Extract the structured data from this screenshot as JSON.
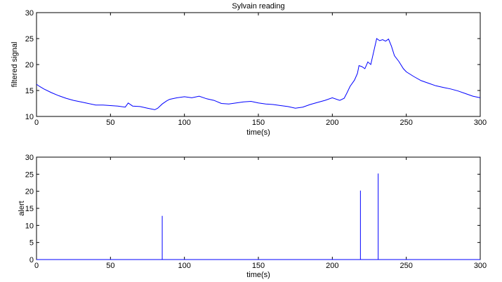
{
  "chart_data": [
    {
      "type": "line",
      "title": "Sylvain reading",
      "xlabel": "time(s)",
      "ylabel": "filtered signal",
      "xlim": [
        0,
        300
      ],
      "ylim": [
        10,
        30
      ],
      "xticks": [
        0,
        50,
        100,
        150,
        200,
        250,
        300
      ],
      "yticks": [
        10,
        15,
        20,
        25,
        30
      ],
      "xtick_labels": [
        "0",
        "50",
        "100",
        "150",
        "200",
        "250",
        "300"
      ],
      "ytick_labels": [
        "10",
        "15",
        "20",
        "25",
        "30"
      ],
      "grid": false,
      "color": "#0000ff",
      "series": [
        {
          "x": [
            0,
            2,
            5,
            10,
            15,
            20,
            25,
            30,
            35,
            40,
            45,
            50,
            55,
            60,
            62,
            65,
            70,
            75,
            80,
            82,
            85,
            88,
            90,
            95,
            100,
            105,
            110,
            115,
            120,
            125,
            130,
            135,
            140,
            145,
            150,
            155,
            160,
            165,
            170,
            175,
            180,
            185,
            190,
            195,
            200,
            205,
            208,
            210,
            212,
            215,
            217,
            218,
            220,
            222,
            224,
            226,
            228,
            230,
            232,
            234,
            236,
            238,
            240,
            242,
            245,
            248,
            250,
            255,
            260,
            265,
            270,
            275,
            280,
            285,
            290,
            295,
            300
          ],
          "y": [
            16.2,
            15.8,
            15.3,
            14.6,
            14.0,
            13.5,
            13.1,
            12.8,
            12.5,
            12.2,
            12.2,
            12.1,
            12.0,
            11.8,
            12.6,
            12.0,
            11.9,
            11.6,
            11.3,
            11.6,
            12.4,
            13.0,
            13.3,
            13.6,
            13.8,
            13.6,
            13.9,
            13.4,
            13.1,
            12.5,
            12.4,
            12.6,
            12.8,
            12.9,
            12.6,
            12.4,
            12.3,
            12.1,
            11.9,
            11.6,
            11.8,
            12.3,
            12.7,
            13.1,
            13.6,
            13.1,
            13.5,
            14.6,
            15.8,
            17.0,
            18.3,
            19.8,
            19.6,
            19.2,
            20.5,
            20.0,
            22.5,
            25.0,
            24.6,
            24.8,
            24.5,
            24.9,
            23.5,
            21.7,
            20.6,
            19.2,
            18.6,
            17.7,
            16.9,
            16.4,
            15.9,
            15.6,
            15.3,
            14.9,
            14.4,
            13.9,
            13.6
          ]
        }
      ]
    },
    {
      "type": "line",
      "title": "",
      "xlabel": "time(s)",
      "ylabel": "alert",
      "xlim": [
        0,
        300
      ],
      "ylim": [
        0,
        30
      ],
      "xticks": [
        0,
        50,
        100,
        150,
        200,
        250,
        300
      ],
      "yticks": [
        0,
        5,
        10,
        15,
        20,
        25,
        30
      ],
      "xtick_labels": [
        "0",
        "50",
        "100",
        "150",
        "200",
        "250",
        "300"
      ],
      "ytick_labels": [
        "0",
        "5",
        "10",
        "15",
        "20",
        "25",
        "30"
      ],
      "grid": false,
      "color": "#0000ff",
      "spikes": [
        {
          "x": 85,
          "y": 12.8
        },
        {
          "x": 219,
          "y": 20.2
        },
        {
          "x": 231,
          "y": 25.2
        }
      ]
    }
  ]
}
